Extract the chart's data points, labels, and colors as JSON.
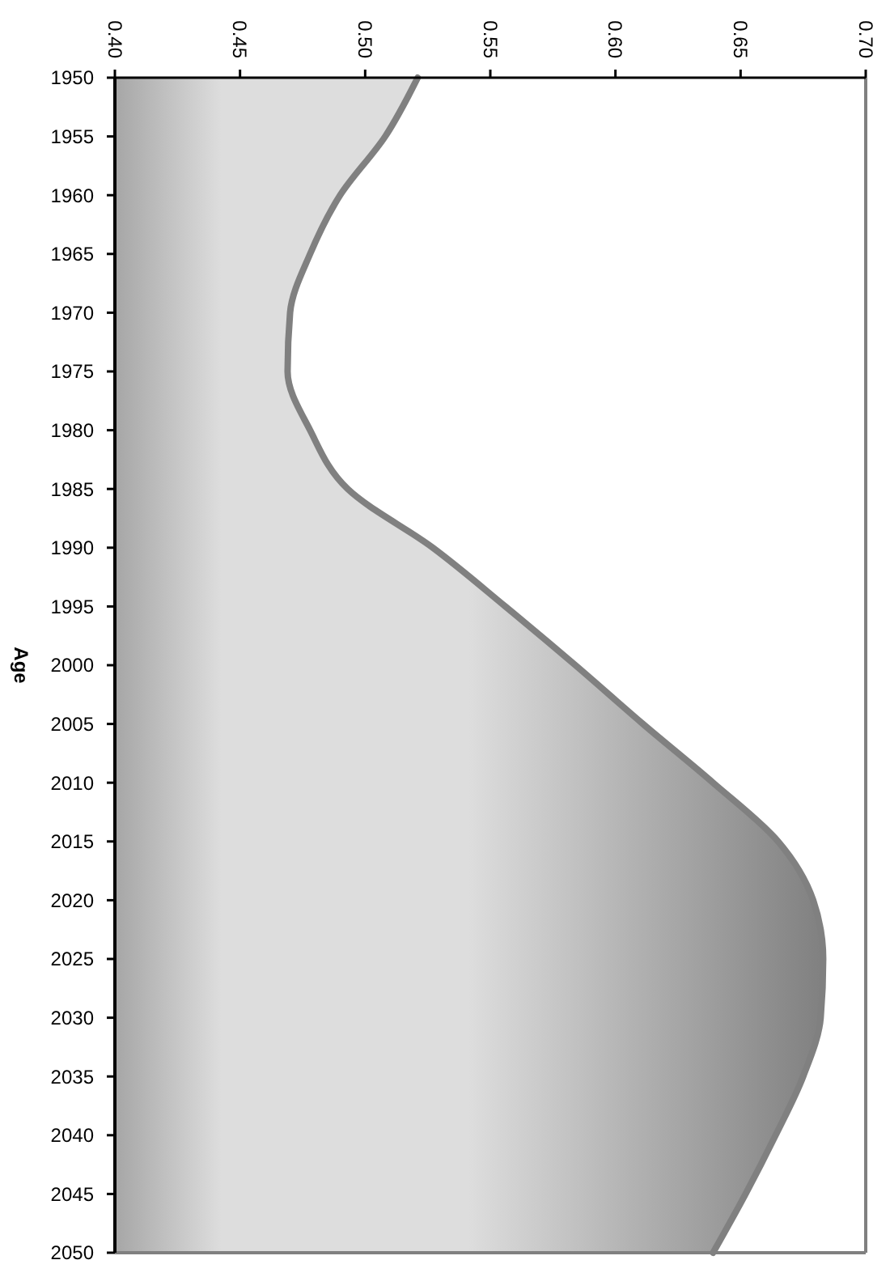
{
  "chart_data": {
    "type": "area",
    "orientation": "horizontal",
    "ylabel": "Age",
    "categories": [
      "1950",
      "1955",
      "1960",
      "1965",
      "1970",
      "1975",
      "1980",
      "1985",
      "1990",
      "1995",
      "2000",
      "2005",
      "2010",
      "2015",
      "2020",
      "2025",
      "2030",
      "2035",
      "2040",
      "2045",
      "2050"
    ],
    "series": [
      {
        "color": "#808080",
        "values": [
          0.521,
          0.508,
          0.49,
          0.478,
          0.47,
          0.469,
          0.478,
          0.493,
          0.527,
          0.556,
          0.584,
          0.611,
          0.639,
          0.665,
          0.679,
          0.683,
          0.682,
          0.675,
          0.664,
          0.652,
          0.639
        ]
      }
    ],
    "xlim": [
      0.4,
      0.7
    ],
    "xticks": [
      {
        "value": 0.4,
        "label": "0.40"
      },
      {
        "value": 0.45,
        "label": "0.45"
      },
      {
        "value": 0.5,
        "label": "0.50"
      },
      {
        "value": 0.55,
        "label": "0.55"
      },
      {
        "value": 0.6,
        "label": "0.60"
      },
      {
        "value": 0.65,
        "label": "0.65"
      },
      {
        "value": 0.7,
        "label": "0.70"
      }
    ]
  }
}
